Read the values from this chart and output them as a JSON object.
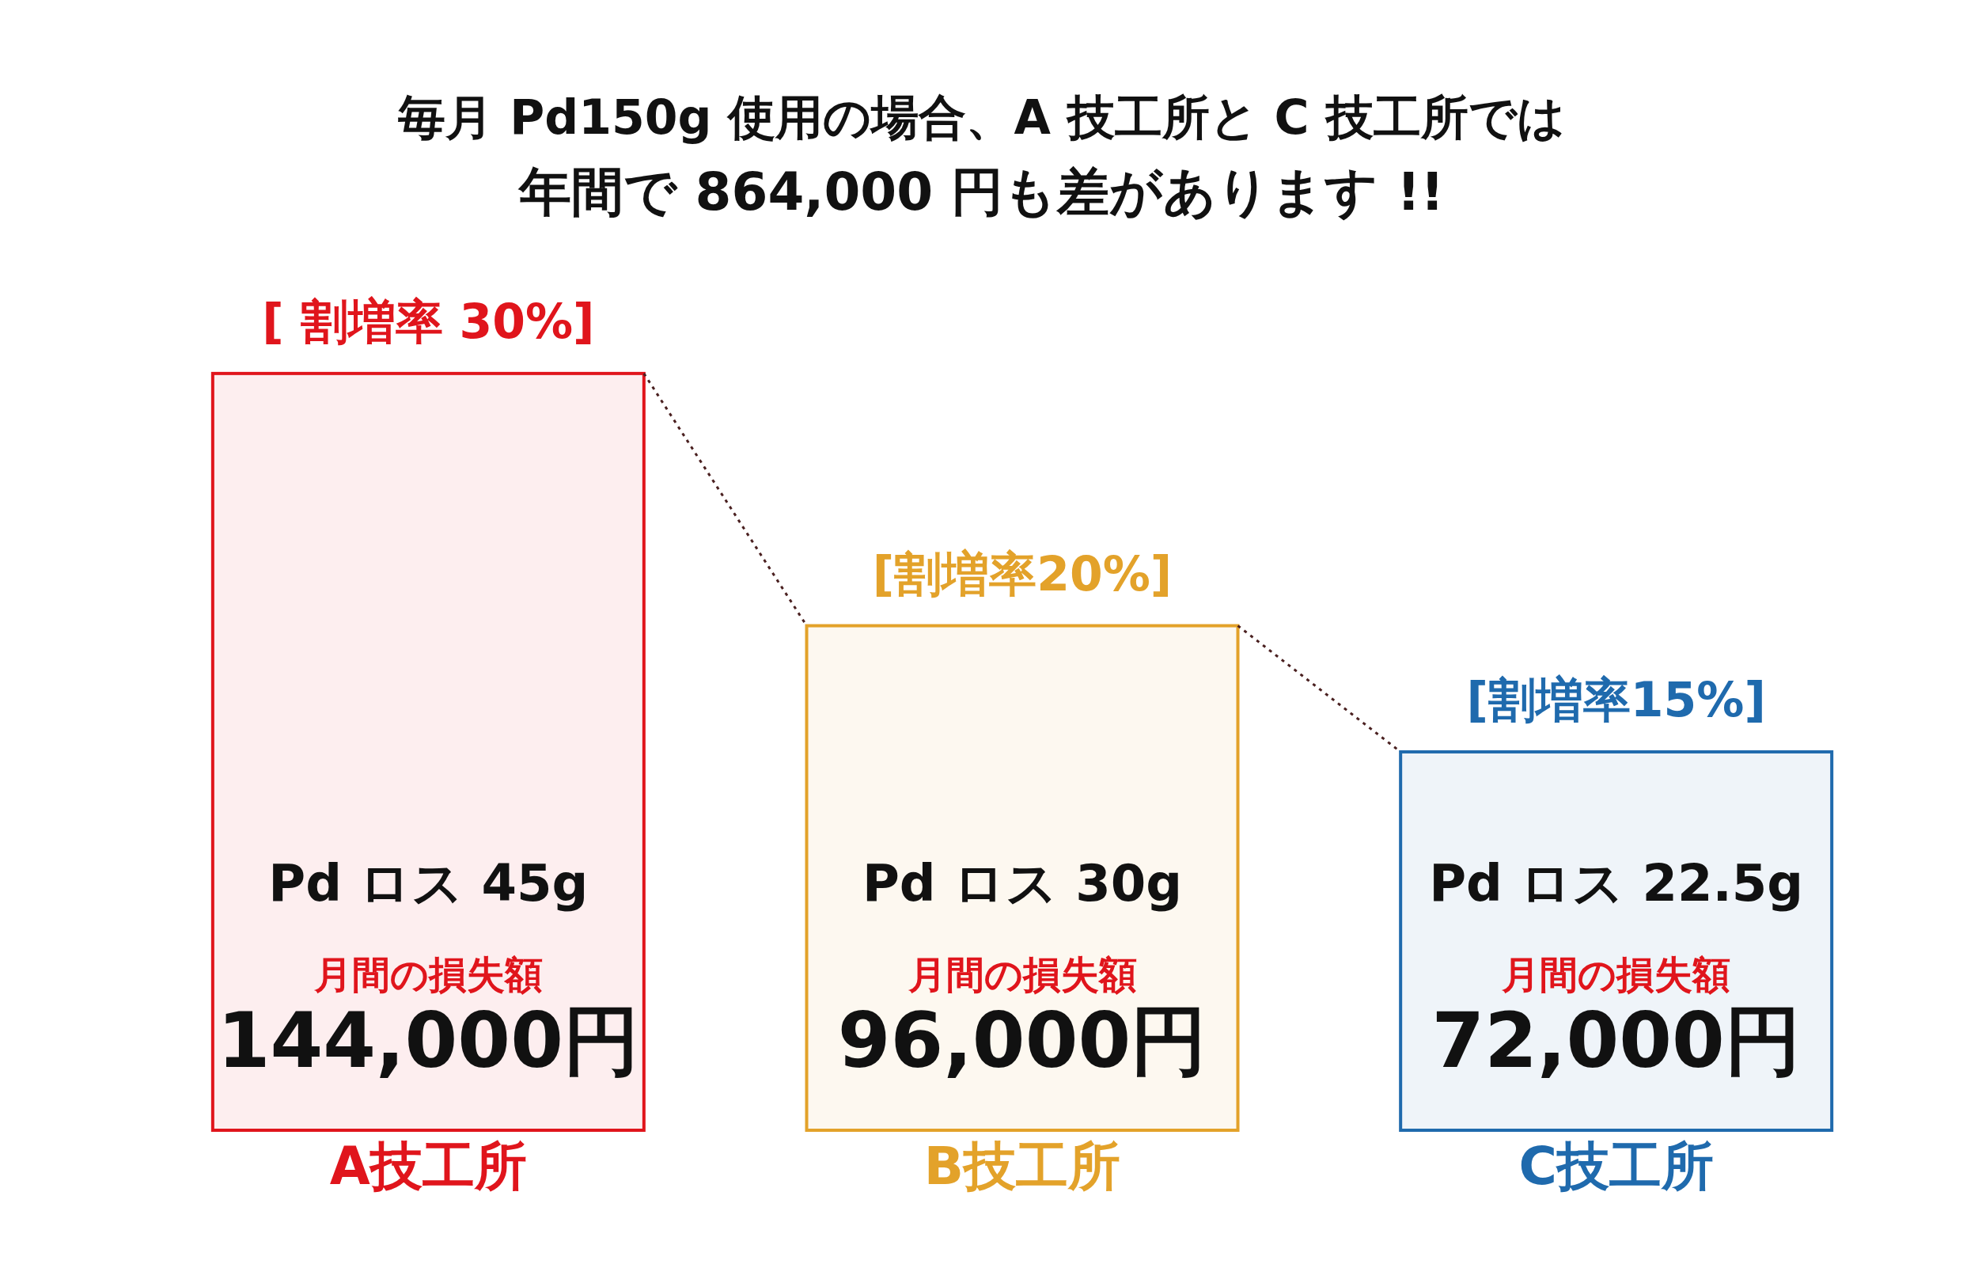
{
  "chart_data": {
    "type": "bar",
    "title": "毎月 Pd150g 使用の場合、A 技工所と C 技工所では",
    "subtitle": "年間で 864,000 円も差があります !!",
    "categories": [
      "A技工所",
      "B技工所",
      "C技工所"
    ],
    "values": [
      144000,
      96000,
      72000
    ],
    "colors": [
      "#e0151c",
      "#e3a22a",
      "#1f6aad"
    ],
    "value_labels": [
      "144,000円",
      "96,000円",
      "72,000円"
    ],
    "annotations": [
      "[ 割増率 30%]",
      "Pd ロス 45g",
      "月間の損失額",
      "[割増率20%]",
      "Pd ロス 30g",
      "月間の損失額",
      "[割増率15%]",
      "Pd ロス 22.5g",
      "月間の損失額"
    ]
  }
}
